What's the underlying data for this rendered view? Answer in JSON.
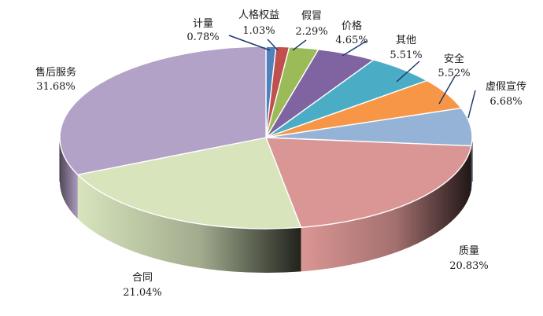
{
  "chart_data": {
    "type": "pie",
    "title": "",
    "slices": [
      {
        "label": "计量",
        "value": 0.78,
        "value_text": "0.78%",
        "color": "#4f81bd"
      },
      {
        "label": "人格权益",
        "value": 1.03,
        "value_text": "1.03%",
        "color": "#c0504d"
      },
      {
        "label": "假冒",
        "value": 2.29,
        "value_text": "2.29%",
        "color": "#9bbb59"
      },
      {
        "label": "价格",
        "value": 4.65,
        "value_text": "4.65%",
        "color": "#8064a2"
      },
      {
        "label": "其他",
        "value": 5.51,
        "value_text": "5.51%",
        "color": "#4bacc6"
      },
      {
        "label": "安全",
        "value": 5.52,
        "value_text": "5.52%",
        "color": "#f79646"
      },
      {
        "label": "虚假宣传",
        "value": 6.68,
        "value_text": "6.68%",
        "color": "#95b3d7"
      },
      {
        "label": "质量",
        "value": 20.83,
        "value_text": "20.83%",
        "color": "#da9694"
      },
      {
        "label": "合同",
        "value": 21.04,
        "value_text": "21.04%",
        "color": "#d7e4bc"
      },
      {
        "label": "售后服务",
        "value": 31.68,
        "value_text": "31.68%",
        "color": "#b3a2c7"
      }
    ],
    "start_angle_deg": 0,
    "direction": "clockwise",
    "style": "3d",
    "legend": "none"
  }
}
